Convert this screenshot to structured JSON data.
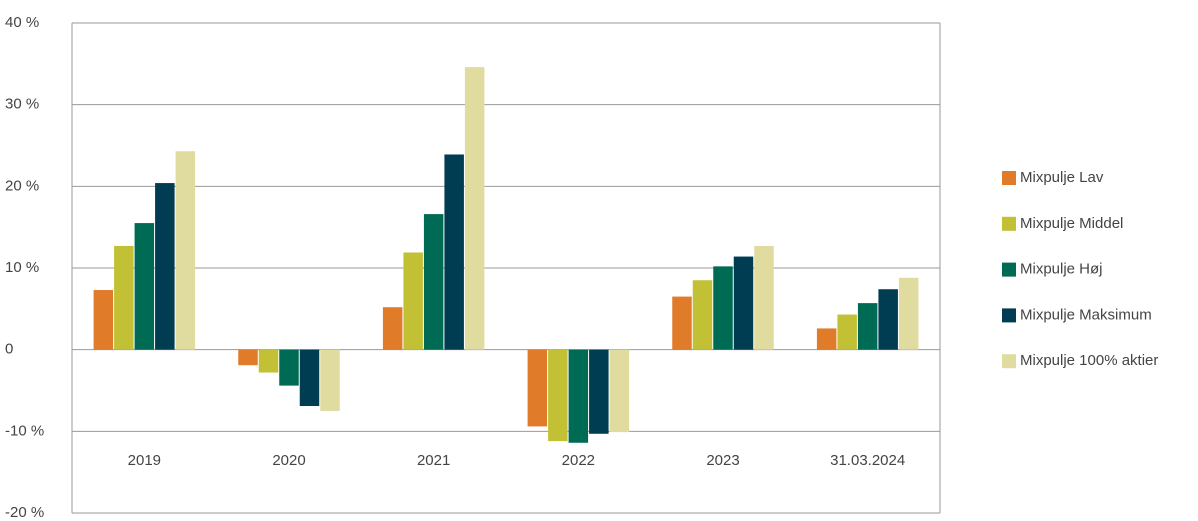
{
  "chart_data": {
    "type": "bar",
    "categories": [
      "2019",
      "2020",
      "2021",
      "2022",
      "2023",
      "31.03.2024"
    ],
    "series": [
      {
        "name": "Mixpulje Lav",
        "color": "#e07b2a",
        "values": [
          7.3,
          -1.9,
          5.2,
          -9.4,
          6.5,
          2.6
        ]
      },
      {
        "name": "Mixpulje Middel",
        "color": "#c2c136",
        "values": [
          12.7,
          -2.8,
          11.9,
          -11.2,
          8.5,
          4.3
        ]
      },
      {
        "name": "Mixpulje Høj",
        "color": "#006b54",
        "values": [
          15.5,
          -4.4,
          16.6,
          -11.4,
          10.2,
          5.7
        ]
      },
      {
        "name": "Mixpulje Maksimum",
        "color": "#003d52",
        "values": [
          20.4,
          -6.9,
          23.9,
          -10.3,
          11.4,
          7.4
        ]
      },
      {
        "name": "Mixpulje 100% aktier",
        "color": "#e0dca0",
        "values": [
          24.3,
          -7.5,
          34.6,
          -10.1,
          12.7,
          8.8
        ]
      }
    ],
    "ylim": [
      -20,
      40
    ],
    "yticks": [
      {
        "value": -20,
        "label": "-20 %"
      },
      {
        "value": -10,
        "label": "-10 %"
      },
      0,
      {
        "value": 10,
        "label": "10 %"
      },
      {
        "value": 20,
        "label": "20 %"
      },
      {
        "value": 30,
        "label": "30 %"
      },
      {
        "value": 40,
        "label": "40 %"
      }
    ],
    "grid": true,
    "legend": "right"
  }
}
